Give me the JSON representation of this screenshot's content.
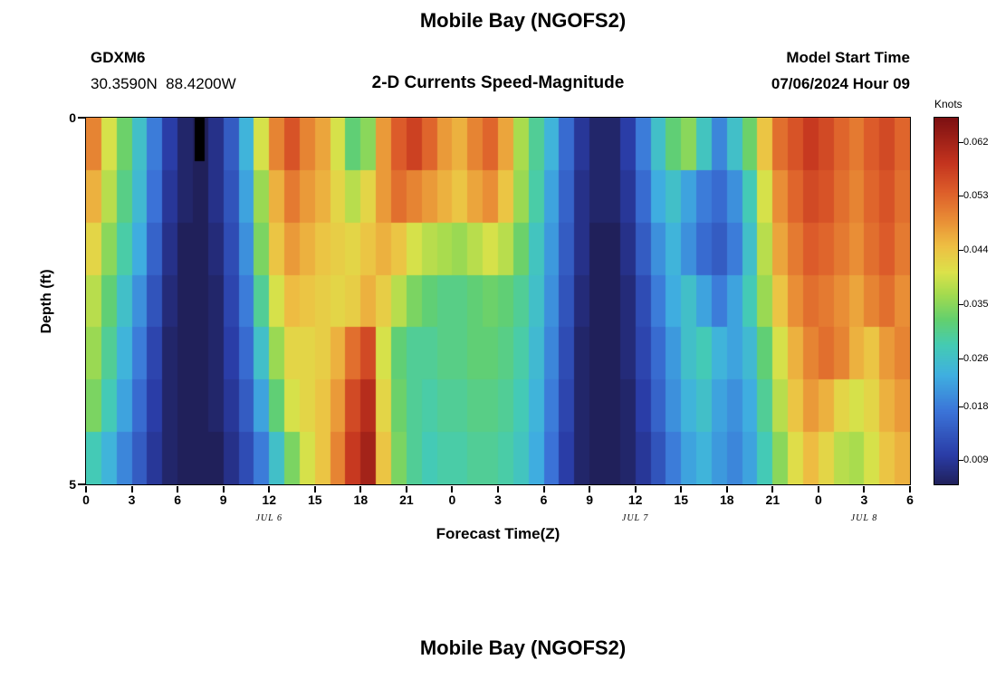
{
  "figure": {
    "title": "Mobile Bay (NGOFS2)",
    "station_id": "GDXM6",
    "coordinates": "30.3590N  88.4200W",
    "subtitle": "2-D Currents Speed-Magnitude",
    "model_start_label": "Model Start Time",
    "model_start_value": "07/06/2024 Hour 09",
    "x_axis_label": "Forecast Time(Z)",
    "y_axis_label": "Depth (ft)",
    "colorbar_label": "Knots",
    "y_tick_labels": [
      "0",
      "5"
    ],
    "x_tick_labels": [
      "0",
      "3",
      "6",
      "9",
      "12",
      "15",
      "18",
      "21",
      "0",
      "3",
      "6",
      "9",
      "12",
      "15",
      "18",
      "21",
      "0",
      "3",
      "6"
    ],
    "date_labels": [
      {
        "text": "JUL 6",
        "center_hour": 12
      },
      {
        "text": "JUL 7",
        "center_hour": 36
      },
      {
        "text": "JUL 8",
        "center_hour": 51
      }
    ],
    "colorbar_tick_labels": [
      "0.062",
      "0.053",
      "0.044",
      "0.035",
      "0.026",
      "0.018",
      "0.009"
    ]
  },
  "next_figure": {
    "title": "Mobile Bay (NGOFS2)"
  },
  "chart_data": {
    "type": "heatmap",
    "title": "Mobile Bay (NGOFS2)",
    "subtitle": "2-D Currents Speed-Magnitude",
    "station": "GDXM6",
    "units": "knots",
    "xlabel": "Forecast Time(Z)",
    "ylabel": "Depth (ft)",
    "x_hours_start": 0,
    "x_hours_end": 54,
    "x_tick_step_hours": 3,
    "x_dates": [
      "JUL 6",
      "JUL 7",
      "JUL 8"
    ],
    "ylim": [
      0,
      5
    ],
    "depths_ft": [
      0,
      0.83,
      1.67,
      2.5,
      3.33,
      4.17,
      5
    ],
    "vmin": 0.005,
    "vmax": 0.066,
    "colorbar_ticks": [
      0.062,
      0.053,
      0.044,
      0.035,
      0.026,
      0.018,
      0.009
    ],
    "colormap_stops": [
      {
        "t": 0.0,
        "c": "#20205a"
      },
      {
        "t": 0.08,
        "c": "#2a3ca6"
      },
      {
        "t": 0.2,
        "c": "#3b74d8"
      },
      {
        "t": 0.3,
        "c": "#3fb0e0"
      },
      {
        "t": 0.38,
        "c": "#44cbb4"
      },
      {
        "t": 0.45,
        "c": "#63d06e"
      },
      {
        "t": 0.52,
        "c": "#a5db4e"
      },
      {
        "t": 0.58,
        "c": "#dce24a"
      },
      {
        "t": 0.65,
        "c": "#eec043"
      },
      {
        "t": 0.72,
        "c": "#e98f36"
      },
      {
        "t": 0.8,
        "c": "#dd5d2a"
      },
      {
        "t": 0.88,
        "c": "#c3331e"
      },
      {
        "t": 1.0,
        "c": "#7d1012"
      }
    ],
    "values": [
      [
        0.05,
        0.04,
        0.033,
        0.026,
        0.018,
        0.01,
        0.006,
        0.005,
        0.008,
        0.014,
        0.024,
        0.04,
        0.05,
        0.055,
        0.05,
        0.047,
        0.04,
        0.032,
        0.035,
        0.048,
        0.054,
        0.057,
        0.053,
        0.048,
        0.046,
        0.05,
        0.053,
        0.047,
        0.037,
        0.03,
        0.024,
        0.016,
        0.009,
        0.006,
        0.006,
        0.01,
        0.018,
        0.026,
        0.032,
        0.035,
        0.027,
        0.019,
        0.026,
        0.033,
        0.044,
        0.052,
        0.055,
        0.058,
        0.056,
        0.053,
        0.051,
        0.054,
        0.056,
        0.053
      ],
      [
        0.046,
        0.038,
        0.031,
        0.025,
        0.017,
        0.009,
        0.006,
        0.005,
        0.008,
        0.013,
        0.022,
        0.036,
        0.046,
        0.051,
        0.048,
        0.046,
        0.042,
        0.038,
        0.042,
        0.048,
        0.052,
        0.05,
        0.048,
        0.046,
        0.044,
        0.047,
        0.049,
        0.044,
        0.036,
        0.029,
        0.022,
        0.015,
        0.008,
        0.006,
        0.006,
        0.009,
        0.016,
        0.023,
        0.026,
        0.022,
        0.018,
        0.016,
        0.02,
        0.028,
        0.04,
        0.049,
        0.053,
        0.056,
        0.055,
        0.052,
        0.05,
        0.053,
        0.055,
        0.052
      ],
      [
        0.042,
        0.035,
        0.029,
        0.023,
        0.015,
        0.008,
        0.005,
        0.005,
        0.007,
        0.012,
        0.02,
        0.034,
        0.044,
        0.048,
        0.046,
        0.044,
        0.043,
        0.042,
        0.044,
        0.046,
        0.044,
        0.04,
        0.038,
        0.037,
        0.036,
        0.038,
        0.04,
        0.038,
        0.033,
        0.027,
        0.021,
        0.014,
        0.008,
        0.005,
        0.005,
        0.008,
        0.014,
        0.02,
        0.024,
        0.02,
        0.016,
        0.014,
        0.018,
        0.026,
        0.038,
        0.047,
        0.051,
        0.054,
        0.053,
        0.051,
        0.049,
        0.052,
        0.054,
        0.051
      ],
      [
        0.038,
        0.032,
        0.026,
        0.02,
        0.013,
        0.007,
        0.005,
        0.005,
        0.006,
        0.011,
        0.018,
        0.03,
        0.04,
        0.045,
        0.044,
        0.043,
        0.042,
        0.043,
        0.046,
        0.043,
        0.038,
        0.034,
        0.032,
        0.031,
        0.031,
        0.032,
        0.033,
        0.032,
        0.03,
        0.026,
        0.02,
        0.013,
        0.007,
        0.005,
        0.005,
        0.007,
        0.012,
        0.018,
        0.023,
        0.026,
        0.022,
        0.018,
        0.022,
        0.028,
        0.036,
        0.044,
        0.049,
        0.052,
        0.051,
        0.049,
        0.047,
        0.05,
        0.052,
        0.049
      ],
      [
        0.036,
        0.03,
        0.024,
        0.018,
        0.011,
        0.006,
        0.005,
        0.005,
        0.006,
        0.01,
        0.016,
        0.026,
        0.036,
        0.042,
        0.042,
        0.043,
        0.046,
        0.052,
        0.056,
        0.04,
        0.032,
        0.03,
        0.03,
        0.031,
        0.031,
        0.032,
        0.032,
        0.031,
        0.029,
        0.025,
        0.019,
        0.012,
        0.006,
        0.005,
        0.005,
        0.007,
        0.011,
        0.016,
        0.021,
        0.026,
        0.028,
        0.024,
        0.022,
        0.025,
        0.032,
        0.04,
        0.046,
        0.05,
        0.052,
        0.05,
        0.046,
        0.044,
        0.048,
        0.05
      ],
      [
        0.034,
        0.028,
        0.022,
        0.016,
        0.01,
        0.006,
        0.005,
        0.005,
        0.006,
        0.009,
        0.014,
        0.022,
        0.032,
        0.04,
        0.042,
        0.044,
        0.048,
        0.056,
        0.06,
        0.042,
        0.033,
        0.03,
        0.029,
        0.03,
        0.03,
        0.031,
        0.031,
        0.03,
        0.028,
        0.024,
        0.018,
        0.011,
        0.006,
        0.005,
        0.005,
        0.006,
        0.01,
        0.015,
        0.02,
        0.024,
        0.026,
        0.022,
        0.02,
        0.023,
        0.03,
        0.038,
        0.044,
        0.048,
        0.046,
        0.042,
        0.04,
        0.042,
        0.046,
        0.048
      ],
      [
        0.028,
        0.024,
        0.019,
        0.014,
        0.009,
        0.006,
        0.005,
        0.005,
        0.005,
        0.008,
        0.012,
        0.018,
        0.026,
        0.034,
        0.04,
        0.044,
        0.05,
        0.058,
        0.062,
        0.044,
        0.034,
        0.03,
        0.028,
        0.029,
        0.029,
        0.03,
        0.03,
        0.029,
        0.027,
        0.023,
        0.017,
        0.01,
        0.006,
        0.005,
        0.005,
        0.006,
        0.009,
        0.013,
        0.018,
        0.022,
        0.024,
        0.021,
        0.019,
        0.022,
        0.028,
        0.035,
        0.041,
        0.045,
        0.042,
        0.038,
        0.037,
        0.04,
        0.044,
        0.046
      ]
    ],
    "black_cells": [
      [
        0,
        7
      ]
    ]
  }
}
